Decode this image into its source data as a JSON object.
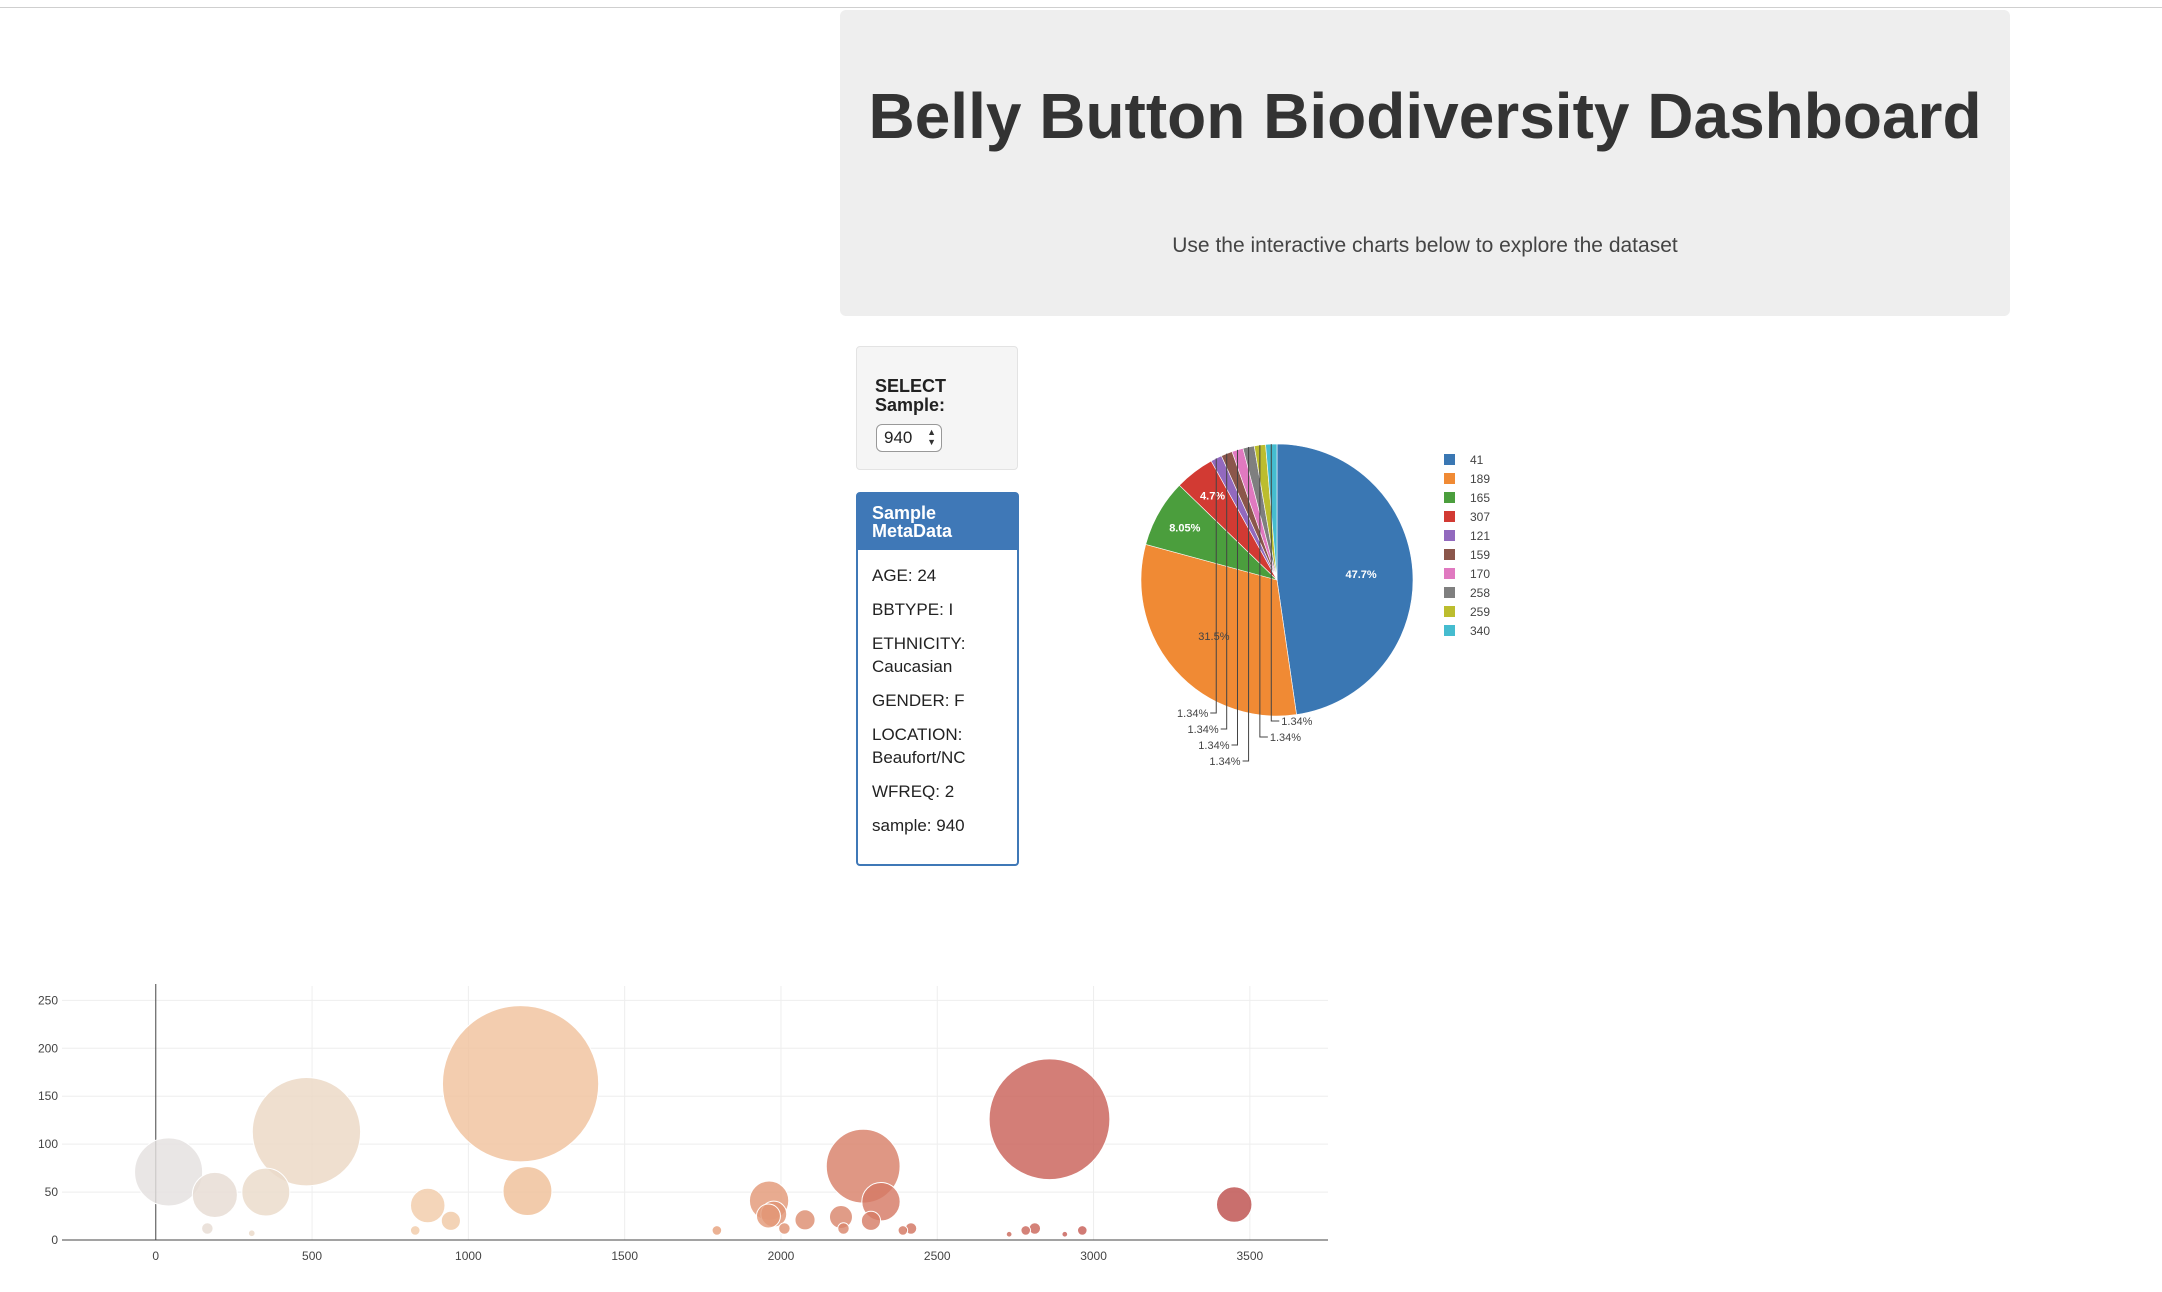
{
  "header": {
    "title": "Belly Button Biodiversity Dashboard",
    "subtitle": "Use the interactive charts below to explore the dataset"
  },
  "selector": {
    "label": "SELECT Sample:",
    "value": "940"
  },
  "metadata_panel": {
    "title": "Sample MetaData",
    "items": [
      "AGE: 24",
      "BBTYPE: I",
      "ETHNICITY: Caucasian",
      "GENDER: F",
      "LOCATION: Beaufort/NC",
      "WFREQ: 2",
      "sample: 940"
    ]
  },
  "chart_data": [
    {
      "type": "pie",
      "labels": [
        "41",
        "189",
        "165",
        "307",
        "121",
        "159",
        "170",
        "258",
        "259",
        "340"
      ],
      "values": [
        47.7,
        31.5,
        8.05,
        4.7,
        1.34,
        1.34,
        1.34,
        1.34,
        1.34,
        1.34
      ],
      "slice_labels": [
        "47.7%",
        "31.5%",
        "8.05%",
        "4.7%",
        "1.34%",
        "1.34%",
        "1.34%",
        "1.34%",
        "1.34%",
        "1.34%"
      ],
      "colors": [
        "#3a77b3",
        "#f08a34",
        "#4b9e3d",
        "#d23a33",
        "#9269be",
        "#8b564b",
        "#e079c0",
        "#7f7f7f",
        "#bcbd2e",
        "#45bccf"
      ],
      "legend_position": "right"
    },
    {
      "type": "scatter",
      "xlim": [
        -300,
        3750
      ],
      "ylim": [
        0,
        265
      ],
      "xticks": [
        "0",
        "500",
        "1000",
        "1500",
        "2000",
        "2500",
        "3000",
        "3500"
      ],
      "yticks": [
        "0",
        "50",
        "100",
        "150",
        "200",
        "250"
      ],
      "grid": true,
      "points": [
        {
          "x": 41,
          "y": 71,
          "size": 71,
          "color": "#e4e1df"
        },
        {
          "x": 189,
          "y": 47,
          "size": 47,
          "color": "#e6dcd3"
        },
        {
          "x": 165,
          "y": 12,
          "size": 12,
          "color": "#e6dcd3"
        },
        {
          "x": 352,
          "y": 50,
          "size": 50,
          "color": "#eadac9"
        },
        {
          "x": 482,
          "y": 113,
          "size": 113,
          "color": "#ecd8c4"
        },
        {
          "x": 307,
          "y": 7,
          "size": 7,
          "color": "#ead9c8"
        },
        {
          "x": 870,
          "y": 36,
          "size": 36,
          "color": "#f1ccaa"
        },
        {
          "x": 830,
          "y": 10,
          "size": 10,
          "color": "#f1ccaa"
        },
        {
          "x": 944,
          "y": 20,
          "size": 20,
          "color": "#f0c9a6"
        },
        {
          "x": 1167,
          "y": 163,
          "size": 163,
          "color": "#f0c29e"
        },
        {
          "x": 1189,
          "y": 51,
          "size": 51,
          "color": "#efbf98"
        },
        {
          "x": 1795,
          "y": 10,
          "size": 10,
          "color": "#e6a17d"
        },
        {
          "x": 1962,
          "y": 41,
          "size": 41,
          "color": "#e39877"
        },
        {
          "x": 1960,
          "y": 25,
          "size": 25,
          "color": "#e39877"
        },
        {
          "x": 1977,
          "y": 27,
          "size": 27,
          "color": "#e09474"
        },
        {
          "x": 2011,
          "y": 12,
          "size": 12,
          "color": "#df9172"
        },
        {
          "x": 2077,
          "y": 21,
          "size": 21,
          "color": "#dd8d70"
        },
        {
          "x": 2192,
          "y": 24,
          "size": 24,
          "color": "#d9866c"
        },
        {
          "x": 2200,
          "y": 12,
          "size": 12,
          "color": "#d9866c"
        },
        {
          "x": 2263,
          "y": 77,
          "size": 77,
          "color": "#d88069"
        },
        {
          "x": 2288,
          "y": 20,
          "size": 20,
          "color": "#d67d67"
        },
        {
          "x": 2320,
          "y": 40,
          "size": 40,
          "color": "#d57a65"
        },
        {
          "x": 2390,
          "y": 10,
          "size": 10,
          "color": "#d37762"
        },
        {
          "x": 2416,
          "y": 12,
          "size": 12,
          "color": "#d27561"
        },
        {
          "x": 2730,
          "y": 6,
          "size": 6,
          "color": "#cc6a5c"
        },
        {
          "x": 2783,
          "y": 10,
          "size": 10,
          "color": "#cb685b"
        },
        {
          "x": 2812,
          "y": 12,
          "size": 12,
          "color": "#ca665a"
        },
        {
          "x": 2859,
          "y": 126,
          "size": 126,
          "color": "#c96259"
        },
        {
          "x": 2908,
          "y": 6,
          "size": 6,
          "color": "#c86059"
        },
        {
          "x": 2964,
          "y": 10,
          "size": 10,
          "color": "#c75e57"
        },
        {
          "x": 3450,
          "y": 37,
          "size": 37,
          "color": "#bd4f4d"
        }
      ]
    }
  ]
}
